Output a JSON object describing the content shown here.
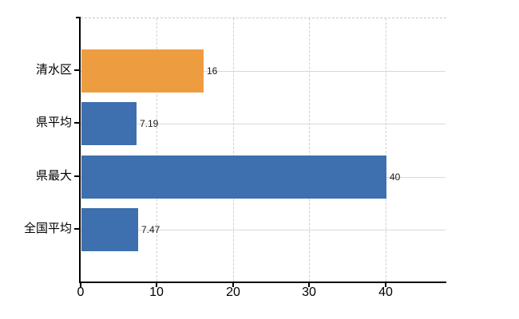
{
  "chart_data": {
    "type": "bar",
    "orientation": "horizontal",
    "categories": [
      "清水区",
      "県平均",
      "県最大",
      "全国平均"
    ],
    "values": [
      16,
      7.19,
      40,
      7.47
    ],
    "value_labels": [
      "16",
      "7.19",
      "40",
      "7.47"
    ],
    "series": [
      {
        "name": "清水区",
        "value": 16,
        "color": "#ee9c40"
      },
      {
        "name": "県平均",
        "value": 7.19,
        "color": "#3e6fae"
      },
      {
        "name": "県最大",
        "value": 40,
        "color": "#3e6fae"
      },
      {
        "name": "全国平均",
        "value": 7.47,
        "color": "#3e6fae"
      }
    ],
    "bar_colors": [
      "#ee9c40",
      "#3e6fae",
      "#3e6fae",
      "#3e6fae"
    ],
    "x_ticks": [
      0,
      10,
      20,
      30,
      40
    ],
    "x_tick_labels": [
      "0",
      "10",
      "20",
      "30",
      "40"
    ],
    "xlim": [
      0,
      48
    ],
    "grid": true,
    "legend": false,
    "title": "",
    "xlabel": "",
    "ylabel": ""
  },
  "style": {
    "background": "#ffffff",
    "axis_color": "#000000",
    "label_color": "#000000",
    "value_label_color": "#1a1a1a",
    "h_grid_color": "#d5dcd2",
    "v_grid_color": "#cfcdd9",
    "top_border_color": "#c9c9c9",
    "accent_orange": "#ee9c40",
    "accent_blue": "#3e6fae"
  }
}
